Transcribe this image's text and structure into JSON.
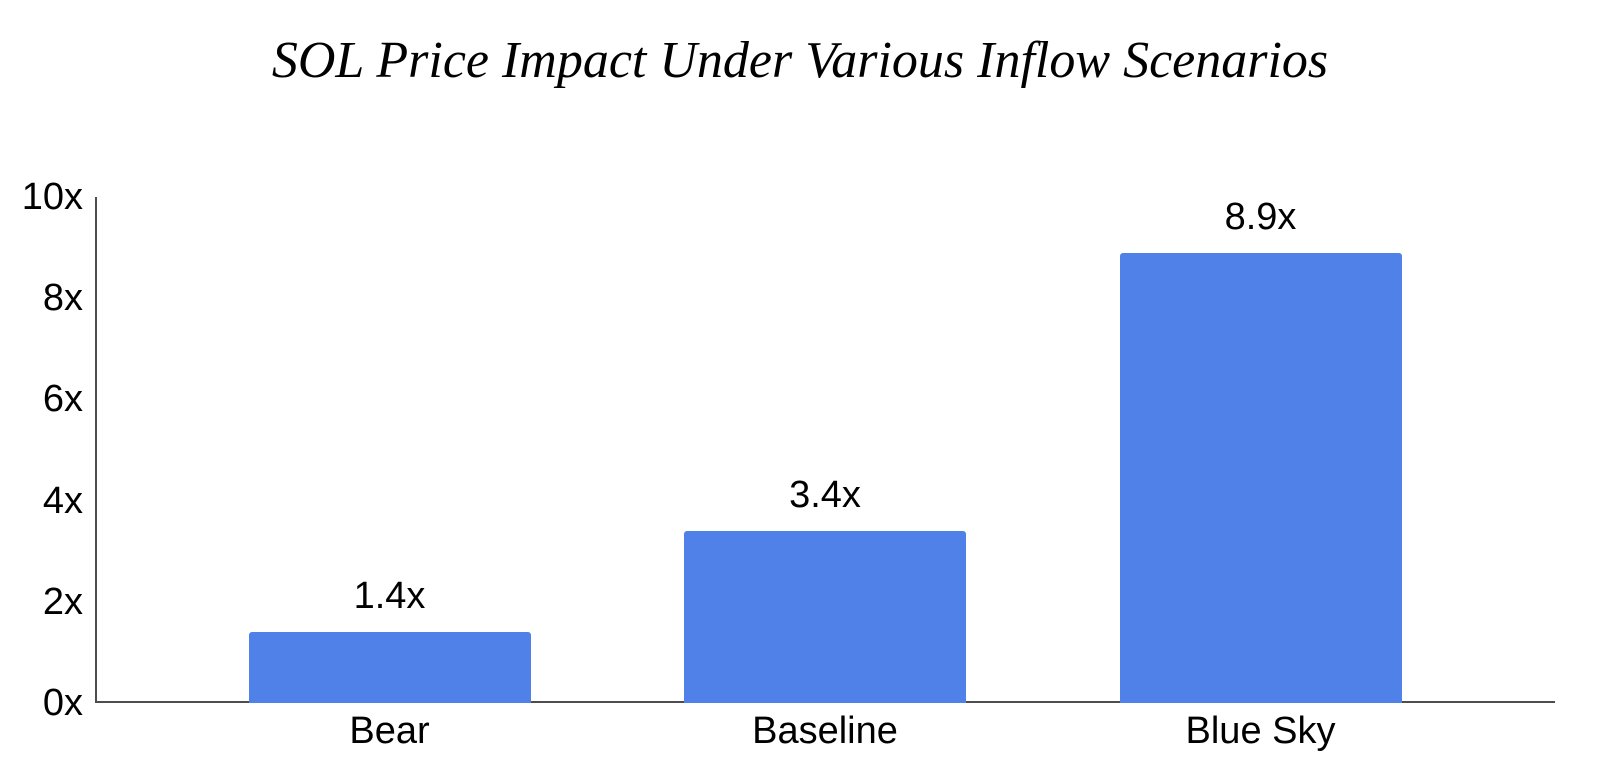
{
  "chart_data": {
    "type": "bar",
    "title": "SOL Price Impact Under Various Inflow Scenarios",
    "categories": [
      "Bear",
      "Baseline",
      "Blue Sky"
    ],
    "values": [
      1.4,
      3.4,
      8.9
    ],
    "value_labels": [
      "1.4x",
      "3.4x",
      "8.9x"
    ],
    "xlabel": "",
    "ylabel": "",
    "ylim": [
      0,
      10
    ],
    "yticks": [
      0,
      2,
      4,
      6,
      8,
      10
    ],
    "ytick_labels": [
      "0x",
      "2x",
      "4x",
      "6x",
      "8x",
      "10x"
    ],
    "grid": false,
    "legend": "none",
    "bar_color": "#4F81E8",
    "axis_color": "#4D4D4D",
    "text_color": "#000000",
    "background_color": "#FFFFFF"
  }
}
